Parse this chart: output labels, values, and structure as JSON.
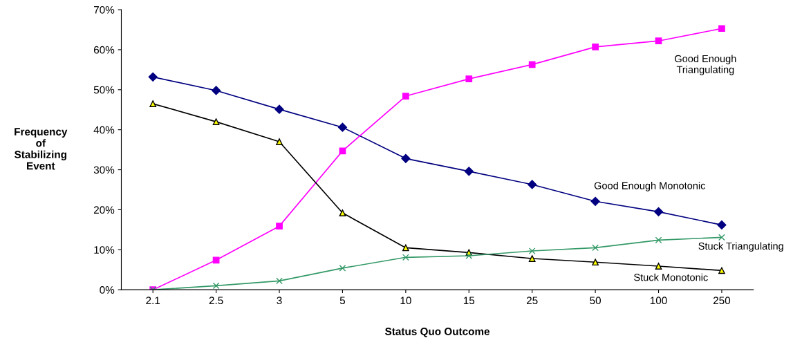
{
  "chart_data": {
    "type": "line",
    "xlabel": "Status Quo Outcome",
    "ylabel": "Frequency\nof\nStabilizing\nEvent",
    "categories": [
      "2.1",
      "2.5",
      "3",
      "5",
      "10",
      "15",
      "25",
      "50",
      "100",
      "250"
    ],
    "ylim": [
      0,
      70
    ],
    "yticks": [
      {
        "value": 0,
        "label": "0%"
      },
      {
        "value": 10,
        "label": "10%"
      },
      {
        "value": 20,
        "label": "20%"
      },
      {
        "value": 30,
        "label": "30%"
      },
      {
        "value": 40,
        "label": "40%"
      },
      {
        "value": 50,
        "label": "50%"
      },
      {
        "value": 60,
        "label": "60%"
      },
      {
        "value": 70,
        "label": "70%"
      }
    ],
    "grid": false,
    "legend": false,
    "series": [
      {
        "name": "Good Enough Monotonic",
        "color": "#000080",
        "marker": "diamond",
        "values": [
          53.2,
          49.8,
          45.1,
          40.6,
          32.8,
          29.6,
          26.3,
          22.1,
          19.5,
          16.2
        ]
      },
      {
        "name": "Good Enough\nTriangulating",
        "color": "#ff00ff",
        "marker": "square",
        "values": [
          0,
          7.4,
          15.9,
          34.7,
          48.4,
          52.7,
          56.3,
          60.7,
          62.2,
          65.3
        ]
      },
      {
        "name": "Stuck Monotonic",
        "color": "#000000",
        "marker": "triangle",
        "values": [
          46.5,
          42.0,
          37.0,
          19.2,
          10.5,
          9.3,
          7.8,
          6.9,
          5.9,
          4.8
        ]
      },
      {
        "name": "Stuck Triangulating",
        "color": "#339966",
        "marker": "cross",
        "values": [
          0,
          1.0,
          2.2,
          5.4,
          8.1,
          8.5,
          9.7,
          10.5,
          12.4,
          13.1
        ]
      }
    ]
  }
}
